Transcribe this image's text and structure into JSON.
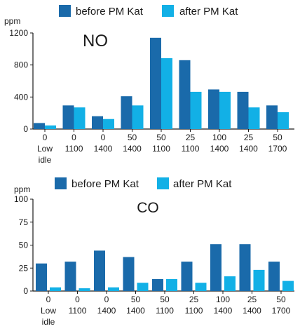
{
  "colors": {
    "before": "#1a6aaa",
    "after": "#12b0e6",
    "axis": "#1a1a1a"
  },
  "chart_data": [
    {
      "type": "bar",
      "title": "NO",
      "ylabel": "ppm",
      "ylim": [
        0,
        1200
      ],
      "yticks": [
        "0",
        "400",
        "800",
        "1200"
      ],
      "legend_position": "top",
      "categories": [
        [
          "0",
          "Low",
          "idle"
        ],
        [
          "0",
          "1100"
        ],
        [
          "0",
          "1400"
        ],
        [
          "50",
          "1400"
        ],
        [
          "50",
          "1100"
        ],
        [
          "25",
          "1100"
        ],
        [
          "100",
          "1400"
        ],
        [
          "25",
          "1400"
        ],
        [
          "50",
          "1700"
        ]
      ],
      "series": [
        {
          "name": "before PM Kat",
          "values": [
            75,
            295,
            160,
            410,
            1140,
            860,
            495,
            465,
            295
          ]
        },
        {
          "name": "after PM Kat",
          "values": [
            45,
            270,
            125,
            295,
            885,
            465,
            465,
            270,
            210
          ]
        }
      ]
    },
    {
      "type": "bar",
      "title": "CO",
      "ylabel": "ppm",
      "ylim": [
        0,
        100
      ],
      "yticks": [
        "0",
        "25",
        "50",
        "75",
        "100"
      ],
      "legend_position": "top",
      "categories": [
        [
          "0",
          "Low",
          "idle"
        ],
        [
          "0",
          "1100"
        ],
        [
          "0",
          "1400"
        ],
        [
          "50",
          "1400"
        ],
        [
          "50",
          "1100"
        ],
        [
          "25",
          "1100"
        ],
        [
          "100",
          "1400"
        ],
        [
          "25",
          "1400"
        ],
        [
          "50",
          "1700"
        ]
      ],
      "series": [
        {
          "name": "before PM Kat",
          "values": [
            30,
            32,
            44,
            37,
            13,
            32,
            51,
            51,
            32
          ]
        },
        {
          "name": "after PM Kat",
          "values": [
            4,
            3,
            4,
            9,
            13,
            9,
            16,
            23,
            11
          ]
        }
      ]
    }
  ]
}
